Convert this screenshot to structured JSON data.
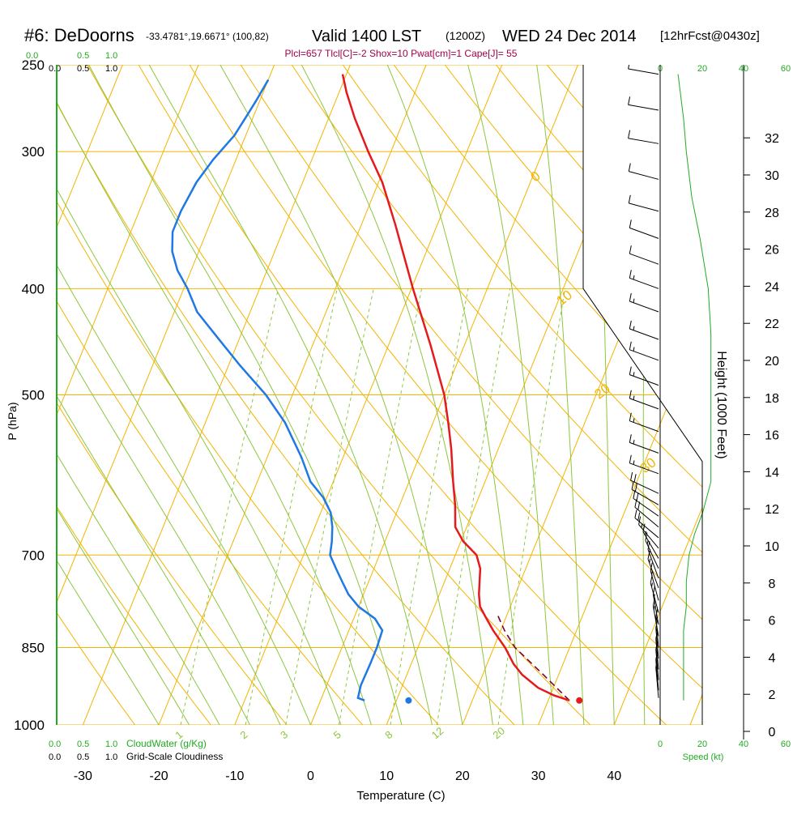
{
  "header": {
    "station": "#6: DeDoorns",
    "coords": "-33.4781°,19.6671° (100,82)",
    "valid": "Valid 1400 LST",
    "zulu": "(1200Z)",
    "date": "WED 24 Dec 2014",
    "forecast": "[12hrFcst@0430z]"
  },
  "params_line": "Plcl=657 Tlcl[C]=-2 Shox=10 Pwat[cm]=1 Cape[J]= 55",
  "colors": {
    "isotherm": "#f4b400",
    "dry_adiabat": "#8dc63f",
    "moist_adiabat": "#8dc63f",
    "mixing_ratio": "#8dc63f",
    "temperature": "#e41a1c",
    "dewpoint": "#1f78e4",
    "parcel": "#7a0034",
    "green_text": "#22aa22",
    "params": "#a0004c"
  },
  "top_left_scales": {
    "cloudwater_labels": [
      "0.0",
      "0.5",
      "1.0"
    ],
    "cloudiness_labels": [
      "0.0",
      "0.5",
      "1.0"
    ]
  },
  "bottom_left_scales": {
    "cloudwater_labels": [
      "0.0",
      "0.5",
      "1.0"
    ],
    "cloudwater_title": "CloudWater (g/Kg)",
    "cloudiness_labels": [
      "0.0",
      "0.5",
      "1.0"
    ],
    "cloudiness_title": "Grid-Scale Cloudiness"
  },
  "speed_axis": {
    "labels": [
      "0",
      "20",
      "40",
      "60"
    ],
    "title": "Speed (kt)"
  },
  "isotherm_labels": [
    {
      "t": 10,
      "text": "10"
    },
    {
      "t": 0,
      "text": "0"
    },
    {
      "t": -10,
      "text": "-10"
    },
    {
      "t": -20,
      "text": "-20"
    },
    {
      "t": -30,
      "text": "-30"
    }
  ],
  "upper_isotherm_labels": [
    {
      "t": 0,
      "text": "0"
    },
    {
      "t": 10,
      "text": "10"
    },
    {
      "t": 20,
      "text": "20"
    },
    {
      "t": 30,
      "text": "30"
    }
  ],
  "mixing_ratio_labels": [
    "1",
    "2",
    "3",
    "5",
    "8",
    "12",
    "20"
  ],
  "chart_data": {
    "type": "skew-t",
    "xlabel": "Temperature (C)",
    "ylabel": "P (hPa)",
    "y2label": "Height (1000 Feet)",
    "x_ticks": [
      -30,
      -20,
      -10,
      0,
      10,
      20,
      30,
      40
    ],
    "pressure_ticks": [
      250,
      300,
      400,
      500,
      700,
      850,
      1000
    ],
    "height_ticks": [
      0,
      2,
      4,
      6,
      8,
      10,
      12,
      14,
      16,
      18,
      20,
      22,
      24,
      26,
      28,
      30,
      32
    ],
    "pressure_range": [
      250,
      1000
    ],
    "temperature_range": [
      -35,
      36
    ],
    "temperature_profile": [
      [
        950,
        32.8
      ],
      [
        940,
        30.5
      ],
      [
        925,
        28.0
      ],
      [
        900,
        25.2
      ],
      [
        880,
        23.5
      ],
      [
        850,
        21.5
      ],
      [
        820,
        19.0
      ],
      [
        800,
        17.5
      ],
      [
        780,
        16.0
      ],
      [
        760,
        15.2
      ],
      [
        720,
        14.0
      ],
      [
        700,
        12.8
      ],
      [
        680,
        10.3
      ],
      [
        660,
        8.5
      ],
      [
        630,
        7.3
      ],
      [
        600,
        5.8
      ],
      [
        560,
        3.8
      ],
      [
        530,
        2.0
      ],
      [
        500,
        0.0
      ],
      [
        450,
        -4.5
      ],
      [
        400,
        -9.8
      ],
      [
        350,
        -15.5
      ],
      [
        320,
        -19.5
      ],
      [
        300,
        -23.0
      ],
      [
        280,
        -26.5
      ],
      [
        265,
        -29.0
      ],
      [
        255,
        -30.5
      ]
    ],
    "dewpoint_profile": [
      [
        950,
        5.8
      ],
      [
        945,
        4.8
      ],
      [
        920,
        4.5
      ],
      [
        880,
        4.6
      ],
      [
        850,
        4.6
      ],
      [
        820,
        4.4
      ],
      [
        800,
        2.8
      ],
      [
        780,
        0.0
      ],
      [
        760,
        -2.0
      ],
      [
        740,
        -3.5
      ],
      [
        720,
        -5.0
      ],
      [
        700,
        -6.5
      ],
      [
        680,
        -7.0
      ],
      [
        660,
        -7.7
      ],
      [
        640,
        -8.7
      ],
      [
        620,
        -10.5
      ],
      [
        600,
        -13.0
      ],
      [
        570,
        -15.5
      ],
      [
        530,
        -19.5
      ],
      [
        500,
        -23.5
      ],
      [
        470,
        -28.5
      ],
      [
        440,
        -33.5
      ],
      [
        420,
        -37.0
      ],
      [
        400,
        -39.5
      ],
      [
        385,
        -41.8
      ],
      [
        370,
        -43.5
      ],
      [
        355,
        -44.5
      ],
      [
        340,
        -44.5
      ],
      [
        320,
        -44.0
      ],
      [
        305,
        -43.0
      ],
      [
        290,
        -41.5
      ],
      [
        280,
        -41.0
      ],
      [
        270,
        -40.5
      ],
      [
        258,
        -40.0
      ]
    ],
    "parcel_profile": [
      [
        950,
        32.8
      ],
      [
        900,
        28.0
      ],
      [
        850,
        22.8
      ],
      [
        820,
        20.5
      ],
      [
        790,
        18.5
      ]
    ],
    "surface_temperature": 34.1,
    "surface_dewpoint": 11.6,
    "surface_pressure": 950,
    "wind_barbs": [
      {
        "p": 255,
        "spd": 5,
        "dir": 280
      },
      {
        "p": 275,
        "spd": 10,
        "dir": 280
      },
      {
        "p": 295,
        "spd": 10,
        "dir": 280
      },
      {
        "p": 318,
        "spd": 10,
        "dir": 285
      },
      {
        "p": 340,
        "spd": 10,
        "dir": 285
      },
      {
        "p": 360,
        "spd": 10,
        "dir": 290
      },
      {
        "p": 380,
        "spd": 10,
        "dir": 290
      },
      {
        "p": 400,
        "spd": 15,
        "dir": 290
      },
      {
        "p": 420,
        "spd": 15,
        "dir": 290
      },
      {
        "p": 445,
        "spd": 15,
        "dir": 290
      },
      {
        "p": 465,
        "spd": 15,
        "dir": 290
      },
      {
        "p": 490,
        "spd": 15,
        "dir": 290
      },
      {
        "p": 515,
        "spd": 15,
        "dir": 290
      },
      {
        "p": 540,
        "spd": 15,
        "dir": 290
      },
      {
        "p": 565,
        "spd": 15,
        "dir": 290
      },
      {
        "p": 590,
        "spd": 15,
        "dir": 290
      },
      {
        "p": 615,
        "spd": 20,
        "dir": 295
      },
      {
        "p": 630,
        "spd": 20,
        "dir": 300
      },
      {
        "p": 645,
        "spd": 20,
        "dir": 305
      },
      {
        "p": 660,
        "spd": 20,
        "dir": 310
      },
      {
        "p": 675,
        "spd": 20,
        "dir": 310
      },
      {
        "p": 690,
        "spd": 15,
        "dir": 320
      },
      {
        "p": 705,
        "spd": 15,
        "dir": 330
      },
      {
        "p": 720,
        "spd": 15,
        "dir": 335
      },
      {
        "p": 735,
        "spd": 15,
        "dir": 340
      },
      {
        "p": 750,
        "spd": 15,
        "dir": 340
      },
      {
        "p": 770,
        "spd": 15,
        "dir": 345
      },
      {
        "p": 790,
        "spd": 15,
        "dir": 345
      },
      {
        "p": 810,
        "spd": 15,
        "dir": 350
      },
      {
        "p": 830,
        "spd": 15,
        "dir": 350
      },
      {
        "p": 850,
        "spd": 15,
        "dir": 355
      },
      {
        "p": 870,
        "spd": 15,
        "dir": 355
      },
      {
        "p": 890,
        "spd": 15,
        "dir": 355
      },
      {
        "p": 910,
        "spd": 15,
        "dir": 355
      },
      {
        "p": 930,
        "spd": 15,
        "dir": 355
      },
      {
        "p": 945,
        "spd": 15,
        "dir": 355
      }
    ],
    "wind_speed_profile": [
      [
        255,
        3
      ],
      [
        280,
        5
      ],
      [
        300,
        6
      ],
      [
        330,
        8
      ],
      [
        360,
        11
      ],
      [
        400,
        14
      ],
      [
        440,
        15
      ],
      [
        480,
        15
      ],
      [
        520,
        15
      ],
      [
        560,
        15
      ],
      [
        600,
        15
      ],
      [
        640,
        12
      ],
      [
        670,
        9
      ],
      [
        700,
        7
      ],
      [
        740,
        6
      ],
      [
        780,
        6
      ],
      [
        820,
        5
      ],
      [
        860,
        5
      ],
      [
        900,
        5
      ],
      [
        950,
        5
      ]
    ]
  }
}
